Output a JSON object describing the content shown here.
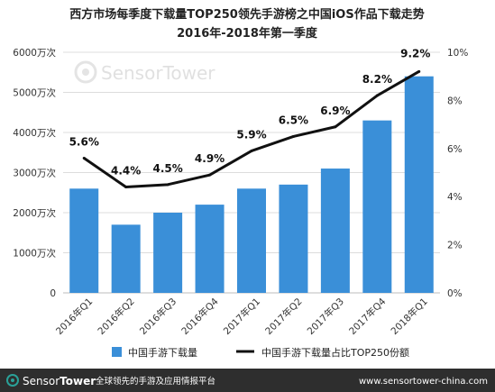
{
  "chart_data": {
    "type": "bar+line",
    "title": "西方市场每季度下载量TOP250领先手游榜之中国iOS作品下载走势",
    "subtitle": "2016年-2018年第一季度",
    "categories": [
      "2016年Q1",
      "2016年Q2",
      "2016年Q3",
      "2016年Q4",
      "2017年Q1",
      "2017年Q2",
      "2017年Q3",
      "2017年Q4",
      "2018年Q1"
    ],
    "left_axis": {
      "range": [
        0,
        6000
      ],
      "ticks": [
        {
          "value": 0,
          "label": "0"
        },
        {
          "value": 1000,
          "label": "1000万次"
        },
        {
          "value": 2000,
          "label": "2000万次"
        },
        {
          "value": 3000,
          "label": "3000万次"
        },
        {
          "value": 4000,
          "label": "4000万次"
        },
        {
          "value": 5000,
          "label": "5000万次"
        },
        {
          "value": 6000,
          "label": "6000万次"
        }
      ]
    },
    "right_axis": {
      "range": [
        0,
        10
      ],
      "ticks": [
        {
          "value": 0,
          "label": "0%"
        },
        {
          "value": 2,
          "label": "2%"
        },
        {
          "value": 4,
          "label": "4%"
        },
        {
          "value": 6,
          "label": "6%"
        },
        {
          "value": 8,
          "label": "8%"
        },
        {
          "value": 10,
          "label": "10%"
        }
      ]
    },
    "grid": true,
    "legend_position": "bottom",
    "series": [
      {
        "name": "中国手游下载量",
        "type": "bar",
        "axis": "left",
        "color": "#3a8fd8",
        "values": [
          2600,
          1700,
          2000,
          2200,
          2600,
          2700,
          3100,
          4300,
          5400
        ]
      },
      {
        "name": "中国手游下载量占比TOP250份额",
        "type": "line",
        "axis": "right",
        "color": "#111111",
        "values": [
          5.6,
          4.4,
          4.5,
          4.9,
          5.9,
          6.5,
          6.9,
          8.2,
          9.2
        ],
        "labels": [
          "5.6%",
          "4.4%",
          "4.5%",
          "4.9%",
          "5.9%",
          "6.5%",
          "6.9%",
          "8.2%",
          "9.2%"
        ]
      }
    ]
  },
  "watermark": {
    "brand_light": "Sensor",
    "brand_bold": "Tower"
  },
  "footer": {
    "brand_light": "Sensor",
    "brand_bold": "Tower",
    "tagline": "全球领先的手游及应用情报平台",
    "url": "www.sensortower-china.com",
    "background": "#2e2e2e",
    "accent": "#2aa198"
  }
}
